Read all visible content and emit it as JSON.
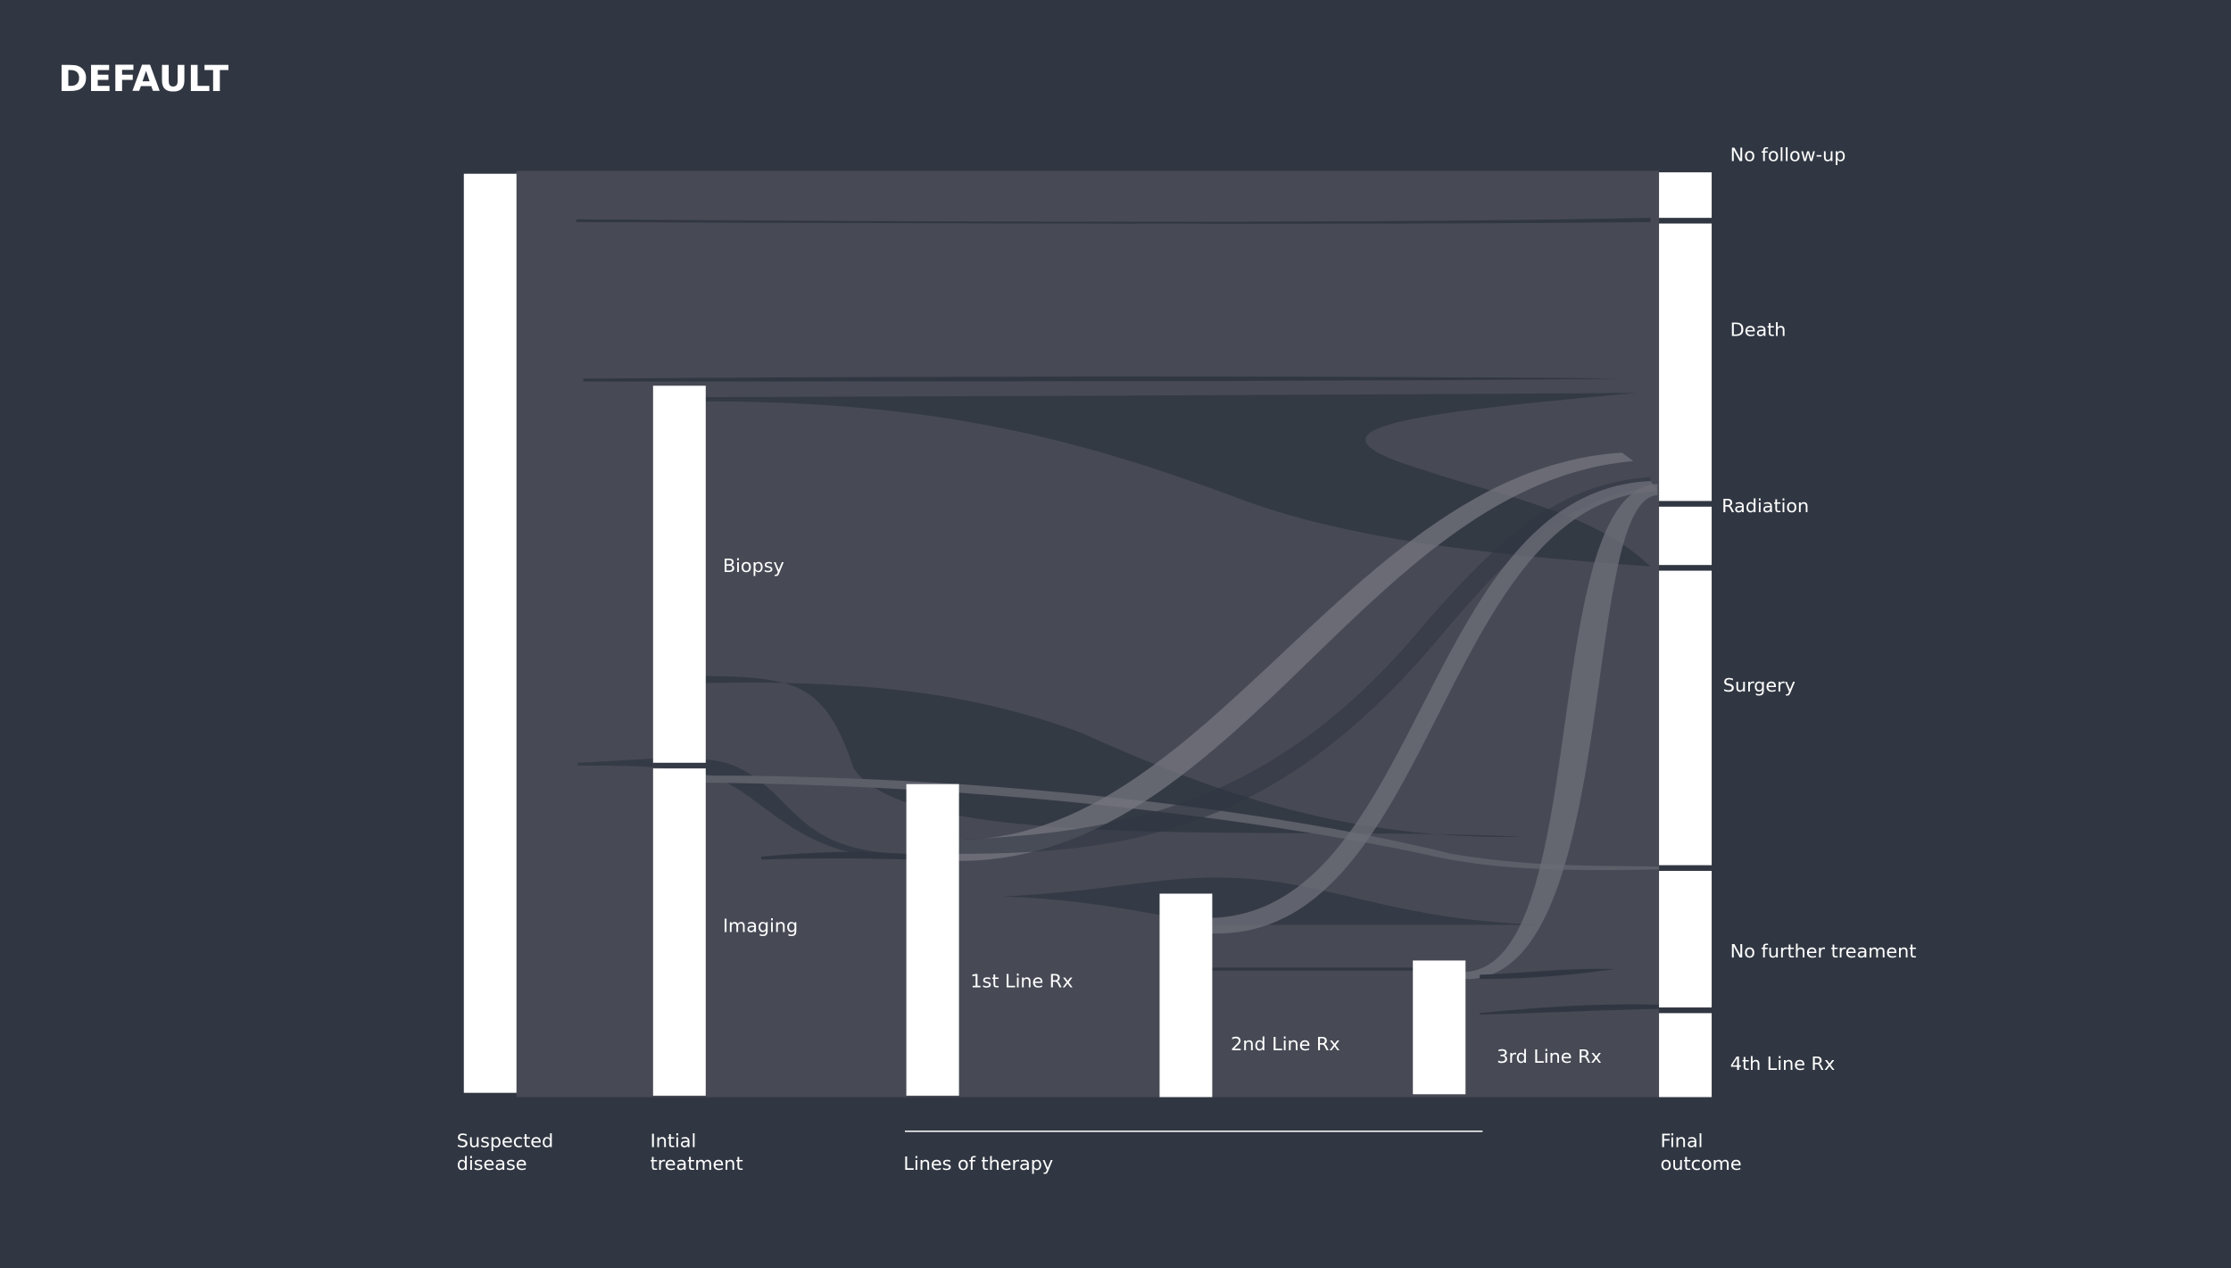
{
  "header": {
    "title": "DEFAULT"
  },
  "nodes": {
    "stage2": [
      "Biopsy",
      "Imaging"
    ],
    "therapy": [
      "1st Line Rx",
      "2nd Line Rx",
      "3rd Line Rx"
    ],
    "outcomes": [
      "No follow-up",
      "Death",
      "Radiation",
      "Surgery",
      "No further treament",
      "4th Line Rx"
    ]
  },
  "stages": [
    [
      "Suspected",
      "disease"
    ],
    [
      "Intial",
      "treatment"
    ],
    [
      "Lines of therapy"
    ],
    [
      "Final",
      "outcome"
    ]
  ]
}
